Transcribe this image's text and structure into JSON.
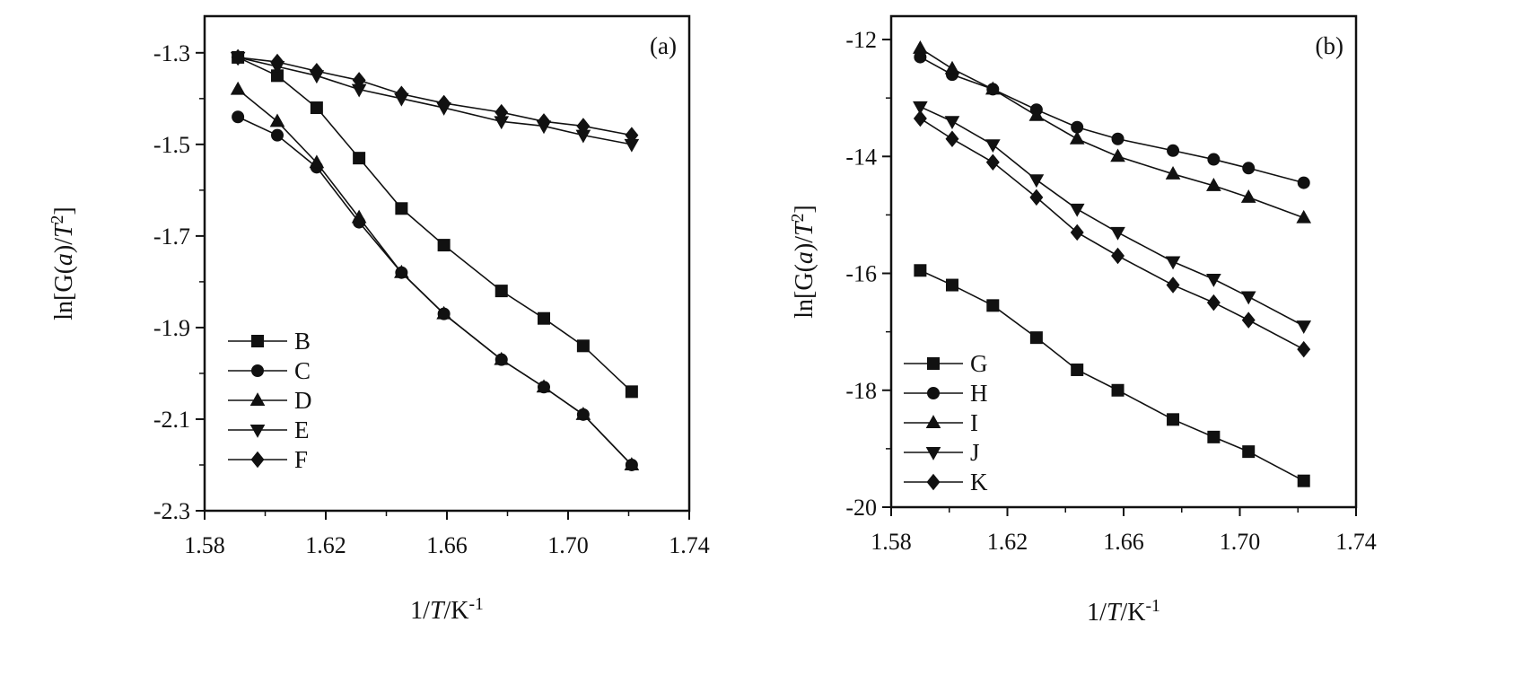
{
  "chart_data": [
    {
      "type": "line",
      "panel_label": "(a)",
      "xlabel": "1/T/K-1",
      "ylabel": "ln[G(a)/T2]",
      "xlim": [
        1.58,
        1.74
      ],
      "ylim": [
        -2.3,
        -1.22
      ],
      "xticks": [
        1.58,
        1.62,
        1.66,
        1.7,
        1.74
      ],
      "xtick_labels": [
        "1.58",
        "1.62",
        "1.66",
        "1.70",
        "1.74"
      ],
      "yticks": [
        -1.3,
        -1.5,
        -1.7,
        -1.9,
        -2.1,
        -2.3
      ],
      "ytick_labels": [
        "-1.3",
        "-1.5",
        "-1.7",
        "-1.9",
        "-2.1",
        "-2.3"
      ],
      "grid": false,
      "legend_position": "bottom-left",
      "x": [
        1.591,
        1.604,
        1.617,
        1.631,
        1.645,
        1.659,
        1.678,
        1.692,
        1.705,
        1.721
      ],
      "series": [
        {
          "name": "B",
          "marker": "square",
          "values": [
            -1.31,
            -1.35,
            -1.42,
            -1.53,
            -1.64,
            -1.72,
            -1.82,
            -1.88,
            -1.94,
            -2.04
          ]
        },
        {
          "name": "C",
          "marker": "circle",
          "values": [
            -1.44,
            -1.48,
            -1.55,
            -1.67,
            -1.78,
            -1.87,
            -1.97,
            -2.03,
            -2.09,
            -2.2
          ]
        },
        {
          "name": "D",
          "marker": "triangle-up",
          "values": [
            -1.38,
            -1.45,
            -1.54,
            -1.66,
            -1.78,
            -1.87,
            -1.97,
            -2.03,
            -2.09,
            -2.2
          ]
        },
        {
          "name": "E",
          "marker": "triangle-down",
          "values": [
            -1.31,
            -1.33,
            -1.35,
            -1.38,
            -1.4,
            -1.42,
            -1.45,
            -1.46,
            -1.48,
            -1.5
          ]
        },
        {
          "name": "F",
          "marker": "diamond",
          "values": [
            -1.31,
            -1.32,
            -1.34,
            -1.36,
            -1.39,
            -1.41,
            -1.43,
            -1.45,
            -1.46,
            -1.48
          ]
        }
      ]
    },
    {
      "type": "line",
      "panel_label": "(b)",
      "xlabel": "1/T/K-1",
      "ylabel": "ln[G(a)/T2]",
      "xlim": [
        1.58,
        1.74
      ],
      "ylim": [
        -20,
        -11.6
      ],
      "xticks": [
        1.58,
        1.62,
        1.66,
        1.7,
        1.74
      ],
      "xtick_labels": [
        "1.58",
        "1.62",
        "1.66",
        "1.70",
        "1.74"
      ],
      "yticks": [
        -12,
        -14,
        -16,
        -18,
        -20
      ],
      "ytick_labels": [
        "-12",
        "-14",
        "-16",
        "-18",
        "-20"
      ],
      "grid": false,
      "legend_position": "bottom-left",
      "x": [
        1.59,
        1.601,
        1.615,
        1.63,
        1.644,
        1.658,
        1.677,
        1.691,
        1.703,
        1.722
      ],
      "series": [
        {
          "name": "G",
          "marker": "square",
          "values": [
            -15.95,
            -16.2,
            -16.55,
            -17.1,
            -17.65,
            -18.0,
            -18.5,
            -18.8,
            -19.05,
            -19.55
          ]
        },
        {
          "name": "H",
          "marker": "circle",
          "values": [
            -12.3,
            -12.6,
            -12.85,
            -13.2,
            -13.5,
            -13.7,
            -13.9,
            -14.05,
            -14.2,
            -14.45
          ]
        },
        {
          "name": "I",
          "marker": "triangle-up",
          "values": [
            -12.15,
            -12.5,
            -12.85,
            -13.3,
            -13.7,
            -14.0,
            -14.3,
            -14.5,
            -14.7,
            -15.05
          ]
        },
        {
          "name": "J",
          "marker": "triangle-down",
          "values": [
            -13.15,
            -13.4,
            -13.8,
            -14.4,
            -14.9,
            -15.3,
            -15.8,
            -16.1,
            -16.4,
            -16.9
          ]
        },
        {
          "name": "K",
          "marker": "diamond",
          "values": [
            -13.35,
            -13.7,
            -14.1,
            -14.7,
            -15.3,
            -15.7,
            -16.2,
            -16.5,
            -16.8,
            -17.3
          ]
        }
      ]
    }
  ],
  "colors": {
    "ink": "#111111",
    "background": "#ffffff"
  }
}
